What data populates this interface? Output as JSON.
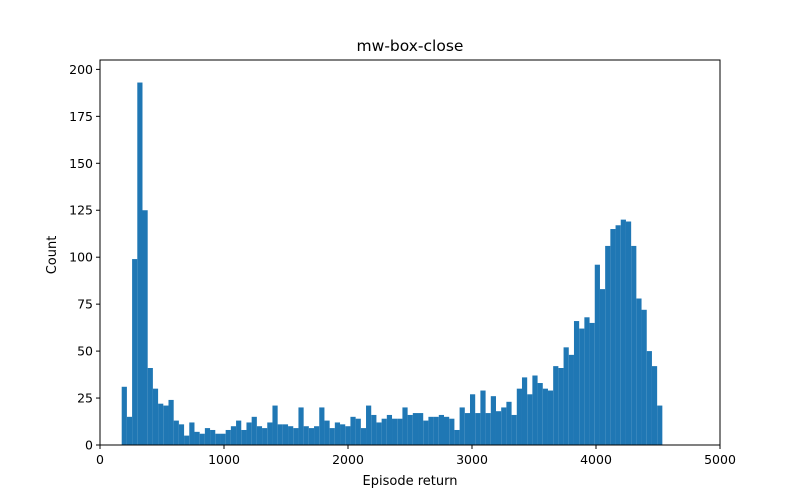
{
  "chart_data": {
    "type": "bar",
    "title": "mw-box-close",
    "xlabel": "Episode return",
    "ylabel": "Count",
    "xlim": [
      0,
      5000
    ],
    "ylim": [
      0,
      205
    ],
    "xticks": [
      0,
      1000,
      2000,
      3000,
      4000,
      5000
    ],
    "yticks": [
      0,
      25,
      50,
      75,
      100,
      125,
      150,
      175,
      200
    ],
    "bar_color": "#1f77b4",
    "bin_start": 175,
    "bin_end": 4535,
    "counts": [
      31,
      15,
      99,
      193,
      125,
      41,
      30,
      22,
      21,
      24,
      13,
      11,
      5,
      12,
      7,
      6,
      9,
      8,
      6,
      6,
      8,
      10,
      13,
      8,
      12,
      15,
      10,
      9,
      12,
      21,
      11,
      11,
      10,
      9,
      20,
      10,
      9,
      10,
      20,
      13,
      9,
      12,
      11,
      10,
      15,
      14,
      9,
      21,
      16,
      12,
      14,
      16,
      14,
      14,
      20,
      16,
      17,
      17,
      13,
      15,
      15,
      16,
      15,
      14,
      8,
      20,
      17,
      27,
      17,
      29,
      17,
      26,
      18,
      20,
      23,
      16,
      30,
      36,
      27,
      37,
      33,
      30,
      29,
      42,
      41,
      52,
      48,
      66,
      62,
      68,
      65,
      96,
      83,
      106,
      115,
      117,
      120,
      119,
      106,
      78,
      72,
      50,
      42,
      21
    ]
  }
}
